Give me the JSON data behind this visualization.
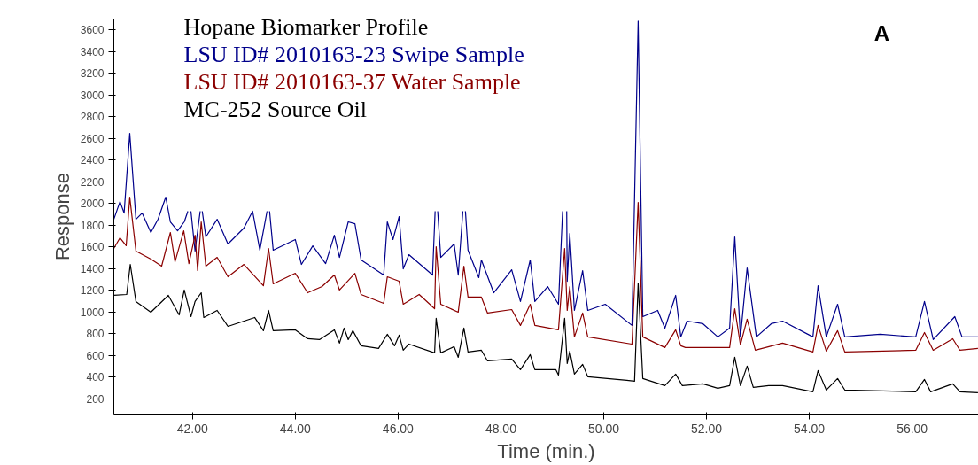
{
  "chart_data": {
    "type": "line",
    "title": "Hopane Biomarker Profile",
    "xlabel": "Time (min.)",
    "ylabel": "Response",
    "annotations": [
      "A"
    ],
    "legend": "top left",
    "grid": false,
    "marker": "none",
    "line_style": "solid",
    "xlim": [
      40.47,
      57.29
    ],
    "ylim": [
      60,
      3700
    ],
    "xticks": [
      {
        "value": 42,
        "label": "42.00"
      },
      {
        "value": 44,
        "label": "44.00"
      },
      {
        "value": 46,
        "label": "46.00"
      },
      {
        "value": 48,
        "label": "48.00"
      },
      {
        "value": 50,
        "label": "50.00"
      },
      {
        "value": 52,
        "label": "52.00"
      },
      {
        "value": 54,
        "label": "54.00"
      },
      {
        "value": 56,
        "label": "56.00"
      }
    ],
    "yticks": [
      200,
      400,
      600,
      800,
      1000,
      1200,
      1400,
      1600,
      1800,
      2000,
      2200,
      2400,
      2600,
      2800,
      3000,
      3200,
      3400,
      3600
    ],
    "series": [
      {
        "name": "LSU ID# 2010163-23 Swipe Sample",
        "color": "#00008b",
        "x": [
          40.47,
          40.59,
          40.67,
          40.78,
          40.9,
          41.02,
          41.19,
          41.33,
          41.48,
          41.57,
          41.71,
          41.84,
          41.91,
          41.94,
          41.97,
          42.05,
          42.15,
          42.17,
          42.19,
          42.26,
          42.48,
          42.69,
          43.0,
          43.17,
          43.31,
          43.45,
          43.48,
          43.5,
          43.57,
          44.0,
          44.12,
          44.34,
          44.59,
          44.76,
          44.86,
          45.03,
          45.16,
          45.28,
          45.72,
          45.79,
          45.9,
          46.02,
          46.1,
          46.21,
          46.41,
          46.67,
          46.72,
          46.74,
          46.77,
          46.83,
          47.09,
          47.17,
          47.26,
          47.28,
          47.31,
          47.36,
          47.57,
          47.62,
          47.86,
          48.21,
          48.38,
          48.57,
          48.66,
          48.91,
          49.12,
          49.2,
          49.24,
          49.28,
          49.29,
          49.34,
          49.43,
          49.59,
          49.69,
          50.03,
          50.55,
          50.67,
          50.76,
          51.05,
          51.19,
          51.4,
          51.5,
          51.62,
          51.93,
          52.22,
          52.45,
          52.55,
          52.66,
          52.79,
          52.97,
          53.26,
          53.48,
          54.07,
          54.17,
          54.33,
          54.55,
          54.69,
          55.38,
          56.07,
          56.24,
          56.41,
          56.83,
          56.97,
          57.28
        ],
        "values": [
          1855,
          2018,
          1912,
          2646,
          1855,
          1912,
          1733,
          1855,
          2059,
          1831,
          1749,
          1831,
          1929,
          null,
          1929,
          1562,
          1929,
          null,
          1929,
          1692,
          1855,
          1627,
          1774,
          1929,
          1570,
          1929,
          null,
          1929,
          1570,
          1668,
          1439,
          1610,
          1447,
          1708,
          1504,
          1831,
          1814,
          1480,
          1341,
          1831,
          1668,
          1880,
          1398,
          1529,
          1447,
          1341,
          1929,
          null,
          1929,
          1504,
          1627,
          1341,
          1929,
          null,
          1929,
          1570,
          1317,
          1480,
          1178,
          1390,
          1097,
          1480,
          1097,
          1235,
          1072,
          1929,
          null,
          1929,
          1284,
          1725,
          1015,
          1382,
          1015,
          1072,
          877,
          3680,
          958,
          1015,
          852,
          1154,
          771,
          917,
          893,
          771,
          852,
          1692,
          771,
          1406,
          771,
          893,
          917,
          771,
          1243,
          771,
          1072,
          771,
          795,
          771,
          1097,
          746,
          958,
          771,
          771
        ]
      },
      {
        "name": "LSU ID# 2010163-37 Water Sample",
        "color": "#8b0000",
        "x": [
          40.47,
          40.59,
          40.71,
          40.78,
          40.9,
          41.19,
          41.4,
          41.57,
          41.66,
          41.83,
          41.93,
          42.05,
          42.1,
          42.17,
          42.26,
          42.48,
          42.69,
          43.0,
          43.38,
          43.48,
          43.57,
          44.0,
          44.24,
          44.52,
          44.76,
          44.86,
          45.16,
          45.28,
          45.72,
          45.79,
          46.02,
          46.1,
          46.41,
          46.71,
          46.74,
          46.83,
          47.17,
          47.28,
          47.36,
          47.62,
          47.74,
          48.21,
          48.38,
          48.57,
          48.66,
          49.12,
          49.24,
          49.29,
          49.34,
          49.43,
          49.59,
          49.69,
          50.55,
          50.67,
          50.76,
          51.19,
          51.4,
          51.5,
          51.59,
          52.45,
          52.55,
          52.66,
          52.79,
          52.95,
          53.48,
          54.07,
          54.17,
          54.33,
          54.55,
          54.69,
          56.07,
          56.24,
          56.41,
          56.79,
          56.93,
          57.28
        ],
        "values": [
          1586,
          1684,
          1611,
          2059,
          1562,
          1488,
          1423,
          1733,
          1463,
          1749,
          1447,
          1708,
          1382,
          1831,
          1423,
          1504,
          1325,
          1439,
          1243,
          1586,
          1260,
          1357,
          1178,
          1235,
          1341,
          1203,
          1357,
          1162,
          1080,
          1325,
          1284,
          1072,
          1162,
          1031,
          1602,
          1072,
          999,
          1423,
          1138,
          1138,
          991,
          1023,
          877,
          1072,
          877,
          836,
          1586,
          1015,
          1235,
          771,
          991,
          771,
          705,
          2010,
          771,
          673,
          836,
          689,
          673,
          673,
          1031,
          697,
          934,
          648,
          714,
          632,
          877,
          640,
          828,
          632,
          648,
          811,
          648,
          754,
          648,
          665
        ]
      },
      {
        "name": "MC-252 Source Oil",
        "color": "#000000",
        "x": [
          40.47,
          40.72,
          40.79,
          40.9,
          41.19,
          41.53,
          41.74,
          41.84,
          41.97,
          42.05,
          42.17,
          42.22,
          42.48,
          42.69,
          43.21,
          43.38,
          43.48,
          43.57,
          44.0,
          44.24,
          44.47,
          44.76,
          44.86,
          44.95,
          45.03,
          45.12,
          45.28,
          45.62,
          45.79,
          45.93,
          46.02,
          46.1,
          46.21,
          46.71,
          46.74,
          46.83,
          47.09,
          47.17,
          47.28,
          47.36,
          47.62,
          47.74,
          48.21,
          48.38,
          48.57,
          48.66,
          49.07,
          49.12,
          49.24,
          49.29,
          49.34,
          49.43,
          49.59,
          49.69,
          50.45,
          50.6,
          50.67,
          50.76,
          51.19,
          51.4,
          51.53,
          51.93,
          52.22,
          52.45,
          52.55,
          52.66,
          52.79,
          52.91,
          53.21,
          53.48,
          54.07,
          54.17,
          54.33,
          54.55,
          54.69,
          56.07,
          56.24,
          56.36,
          56.79,
          56.93,
          57.28
        ],
        "values": [
          1154,
          1162,
          1439,
          1097,
          999,
          1154,
          974,
          1203,
          958,
          1097,
          1178,
          950,
          1015,
          868,
          950,
          828,
          1015,
          828,
          836,
          754,
          746,
          836,
          714,
          852,
          746,
          828,
          689,
          665,
          795,
          689,
          787,
          648,
          705,
          624,
          942,
          624,
          681,
          583,
          852,
          632,
          648,
          550,
          567,
          469,
          608,
          469,
          469,
          420,
          942,
          526,
          640,
          428,
          518,
          404,
          371,
          363,
          1268,
          388,
          322,
          428,
          322,
          339,
          298,
          322,
          583,
          322,
          502,
          306,
          322,
          322,
          265,
          461,
          282,
          388,
          282,
          265,
          379,
          265,
          339,
          265,
          257
        ]
      }
    ]
  }
}
